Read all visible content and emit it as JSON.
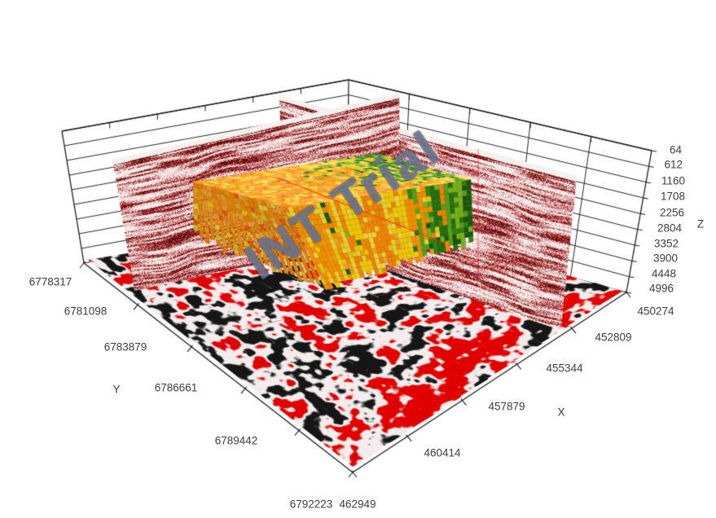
{
  "chart_data": {
    "type": "heatmap",
    "subtype": "3d-seismic-volume-view",
    "axes": {
      "x": {
        "label": "X",
        "ticks": [
          "450274",
          "452809",
          "455344",
          "457879",
          "460414",
          "462949"
        ],
        "range": [
          450274,
          462949
        ]
      },
      "y": {
        "label": "Y",
        "ticks": [
          "6778317",
          "6781098",
          "6783879",
          "6786661",
          "6789442",
          "6792223"
        ],
        "range": [
          6778317,
          6792223
        ]
      },
      "z": {
        "label": "Z",
        "ticks": [
          "64",
          "612",
          "1160",
          "1708",
          "2256",
          "2804",
          "3352",
          "3900",
          "4448",
          "4996"
        ],
        "range": [
          64,
          4996
        ]
      }
    },
    "watermark": "INT Trial",
    "scene": {
      "elements": [
        "axis-cube-wireframe",
        "inline-seismic-fence-section",
        "crossline-seismic-fence-section",
        "horizontal-depth-slice",
        "attribute-voxel-geobody",
        "red-intersection-lines"
      ],
      "colors": {
        "background": "#ffffff",
        "axis_line": "#1c1c1c",
        "grid_line": "#262626",
        "label_text": "#3e3e3e",
        "seismic_dark": "#5c0a0a",
        "seismic_mid": "#9e1c1c",
        "seismic_light": "#c45e5e",
        "seismic_pale": "#e2b0b0",
        "seismic_bg": "#f6efee",
        "slice_red": "#e00000",
        "slice_black": "#161616",
        "slice_bg": "#f8f6f5",
        "body_oranges": [
          "#ffa416",
          "#ff9a00",
          "#ffae2e",
          "#f69200",
          "#ff8c0a"
        ],
        "body_yellows": [
          "#ffd400",
          "#f7df33",
          "#ffe14a",
          "#e9d41c"
        ],
        "body_greens": [
          "#7cc01f",
          "#58ad1e",
          "#2f8f12",
          "#1f7a10",
          "#14600c"
        ],
        "body_accent_red": "#ff6000",
        "body_gray": "#8fa08f",
        "red_line": "#ff2d00"
      }
    }
  }
}
